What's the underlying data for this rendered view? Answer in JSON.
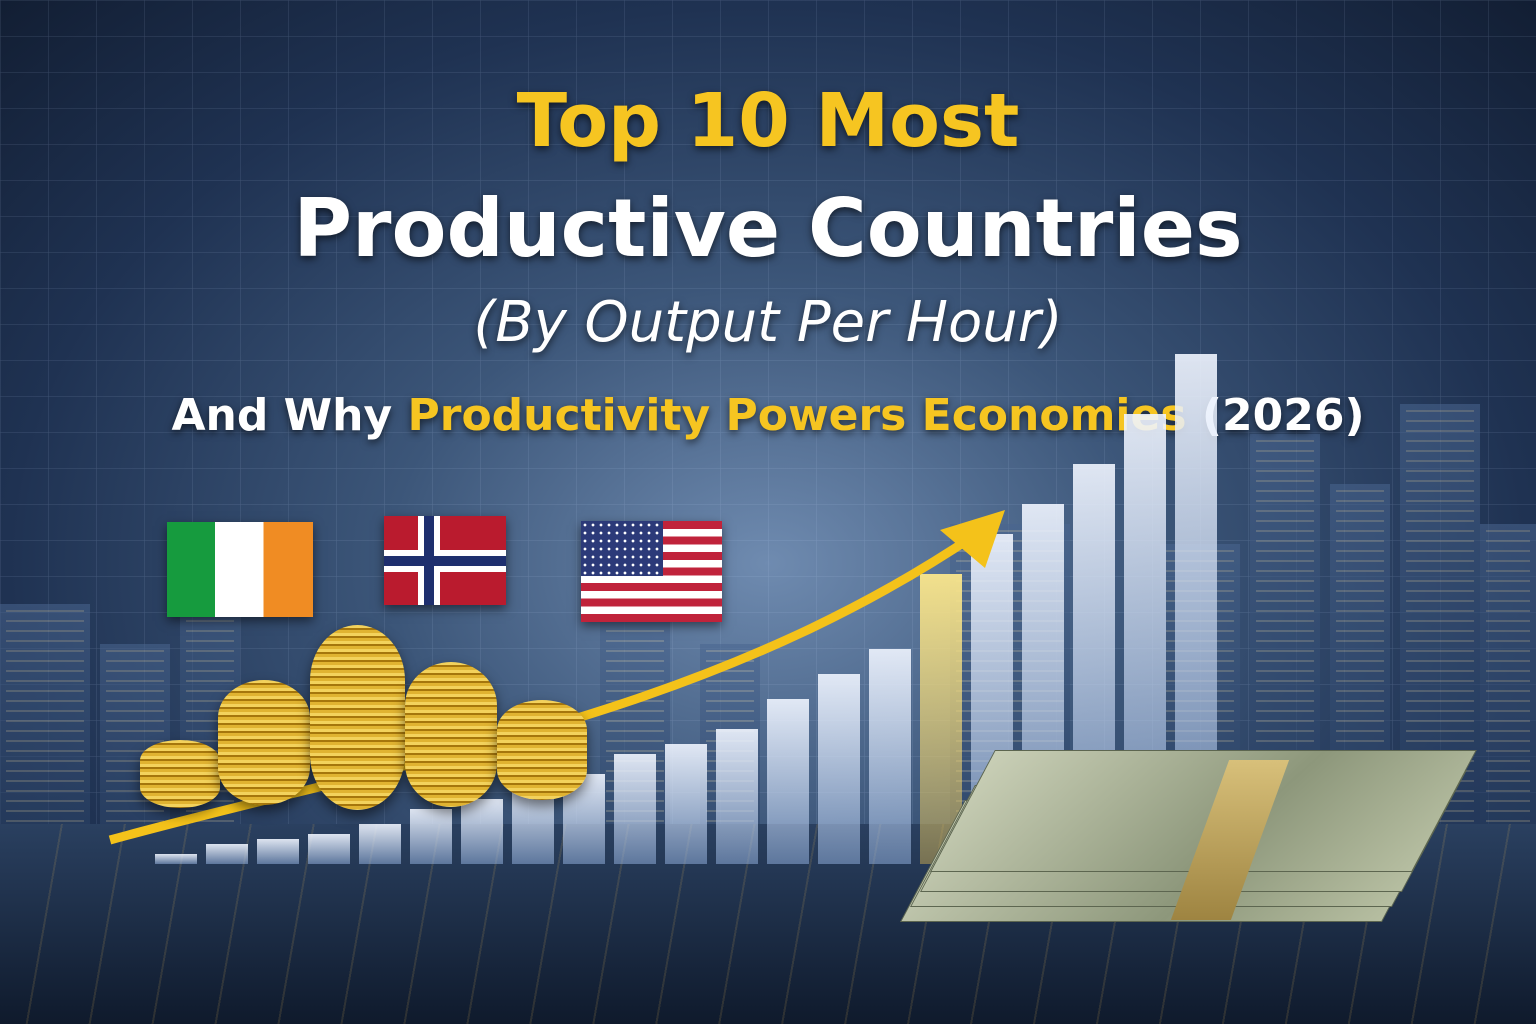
{
  "headline": {
    "line1": "Top 10 Most",
    "line2": "Productive Countries",
    "line3": "(By Output Per Hour)",
    "line4_prefix": "And Why",
    "line4_highlight": "Productivity Powers Economies",
    "line4_suffix": "(2026)"
  },
  "colors": {
    "accent": "#f6c521",
    "text": "#ffffff",
    "background": "#1f3252"
  },
  "illustration": {
    "flags": [
      "ireland-flag",
      "norway-flag",
      "usa-flag"
    ],
    "elements": [
      "gold-coin-stacks",
      "rising-arrow",
      "bar-columns",
      "dollar-bill-stack",
      "city-skyline"
    ]
  }
}
